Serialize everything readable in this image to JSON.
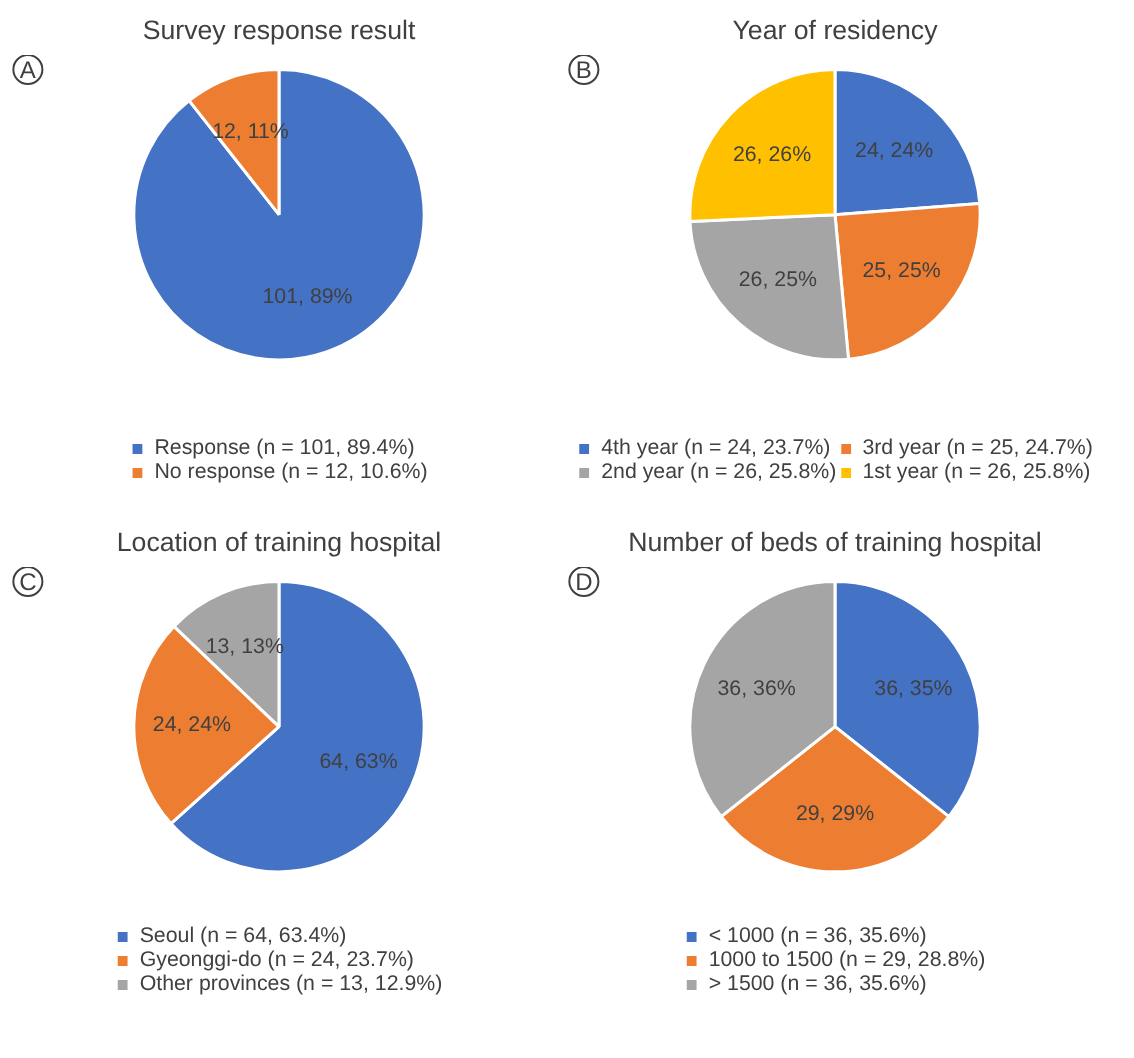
{
  "chart_data": [
    {
      "type": "pie",
      "title": "Survey response result",
      "annotations": [
        "A"
      ],
      "legend": "bottom",
      "categories": [
        "Response (n = 101, 89.4%)",
        "No response (n = 12, 10.6%)"
      ],
      "values": [
        101,
        12
      ],
      "colors": [
        "#4472c4",
        "#ed7d31"
      ],
      "value_labels": [
        "101, 89%",
        "12, 11%"
      ]
    },
    {
      "type": "pie",
      "title": "Year of residency",
      "annotations": [
        "B"
      ],
      "legend": "bottom",
      "categories": [
        "4th year (n = 24, 23.7%)",
        "3rd year (n = 25, 24.7%)",
        "2nd year (n = 26, 25.8%)",
        "1st year (n = 26, 25.8%)"
      ],
      "values": [
        24,
        25,
        26,
        26
      ],
      "colors": [
        "#4472c4",
        "#ed7d31",
        "#a5a5a5",
        "#ffc000"
      ],
      "value_labels": [
        "24, 24%",
        "25, 25%",
        "26, 25%",
        "26, 26%"
      ]
    },
    {
      "type": "pie",
      "title": "Location of training hospital",
      "annotations": [
        "C"
      ],
      "legend": "bottom",
      "categories": [
        "Seoul (n = 64, 63.4%)",
        "Gyeonggi-do (n = 24, 23.7%)",
        "Other provinces (n = 13, 12.9%)"
      ],
      "values": [
        64,
        24,
        13
      ],
      "colors": [
        "#4472c4",
        "#ed7d31",
        "#a5a5a5"
      ],
      "value_labels": [
        "64, 63%",
        "24, 24%",
        "13, 13%"
      ]
    },
    {
      "type": "pie",
      "title": "Number of beds of training hospital",
      "annotations": [
        "D"
      ],
      "legend": "bottom",
      "categories": [
        "< 1000 (n = 36, 35.6%)",
        "1000 to 1500 (n = 29, 28.8%)",
        "> 1500 (n = 36, 35.6%)"
      ],
      "values": [
        36,
        29,
        36
      ],
      "colors": [
        "#4472c4",
        "#ed7d31",
        "#a5a5a5"
      ],
      "value_labels": [
        "36, 35%",
        "29, 29%",
        "36, 36%"
      ]
    }
  ]
}
